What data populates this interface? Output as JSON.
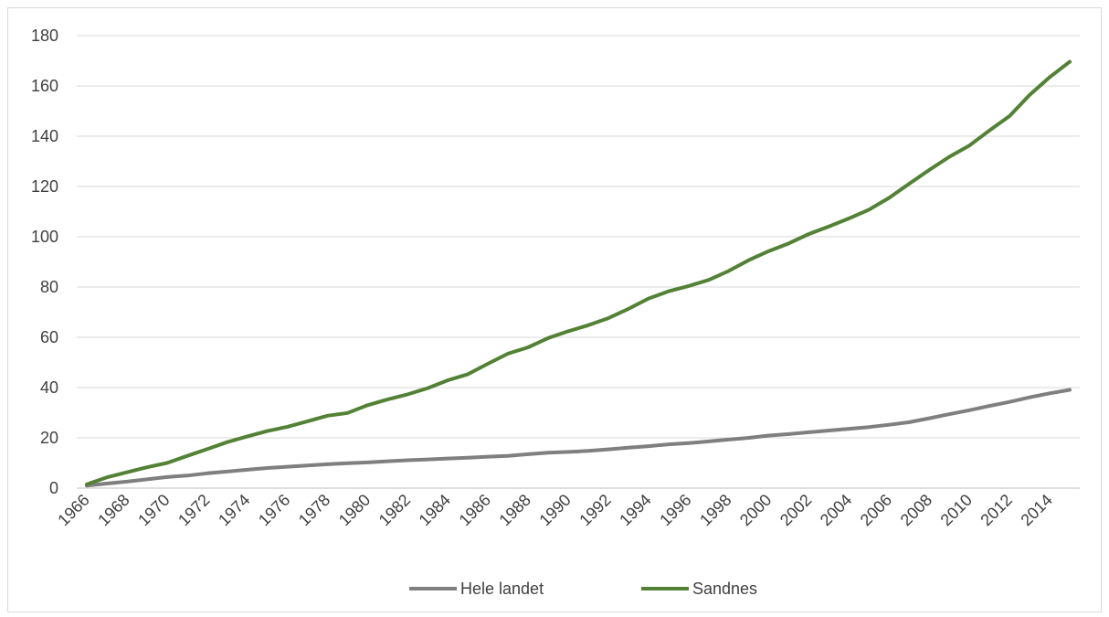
{
  "chart_data": {
    "type": "line",
    "title": "",
    "xlabel": "",
    "ylabel": "",
    "ylim": [
      0,
      180
    ],
    "yticks": [
      0,
      20,
      40,
      60,
      80,
      100,
      120,
      140,
      160,
      180
    ],
    "x": [
      1966,
      1967,
      1968,
      1969,
      1970,
      1971,
      1972,
      1973,
      1974,
      1975,
      1976,
      1977,
      1978,
      1979,
      1980,
      1981,
      1982,
      1983,
      1984,
      1985,
      1986,
      1987,
      1988,
      1989,
      1990,
      1991,
      1992,
      1993,
      1994,
      1995,
      1996,
      1997,
      1998,
      1999,
      2000,
      2001,
      2002,
      2003,
      2004,
      2005,
      2006,
      2007,
      2008,
      2009,
      2010,
      2011,
      2012,
      2013,
      2014,
      2015
    ],
    "xtick_labels": [
      "1966",
      "1968",
      "1970",
      "1972",
      "1974",
      "1976",
      "1978",
      "1980",
      "1982",
      "1984",
      "1986",
      "1988",
      "1990",
      "1992",
      "1994",
      "1996",
      "1998",
      "2000",
      "2002",
      "2004",
      "2006",
      "2008",
      "2010",
      "2012",
      "2014"
    ],
    "grid": true,
    "legend_position": "bottom",
    "series": [
      {
        "name": "Hele landet",
        "color": "#7f7f7f",
        "values": [
          1,
          1.8,
          2.6,
          3.5,
          4.4,
          5,
          5.9,
          6.6,
          7.3,
          8,
          8.5,
          9,
          9.5,
          9.9,
          10.2,
          10.7,
          11.1,
          11.4,
          11.8,
          12.1,
          12.5,
          12.8,
          13.5,
          14.1,
          14.4,
          14.8,
          15.4,
          16.1,
          16.7,
          17.4,
          17.9,
          18.6,
          19.3,
          20,
          20.9,
          21.5,
          22.2,
          22.9,
          23.6,
          24.3,
          25.2,
          26.2,
          27.8,
          29.4,
          31,
          32.7,
          34.3,
          36.1,
          37.7,
          39.1
        ]
      },
      {
        "name": "Sandnes",
        "color": "#538135",
        "values": [
          1.5,
          4.3,
          6.3,
          8.3,
          10,
          12.8,
          15.5,
          18.3,
          20.6,
          22.7,
          24.4,
          26.6,
          28.8,
          29.9,
          33,
          35.3,
          37.3,
          39.8,
          42.9,
          45.3,
          49.5,
          53.5,
          56,
          59.7,
          62.4,
          64.8,
          67.6,
          71.3,
          75.4,
          78.3,
          80.4,
          82.8,
          86.4,
          90.7,
          94.3,
          97.4,
          101.1,
          104.1,
          107.3,
          110.8,
          115.5,
          121.1,
          126.6,
          131.8,
          136.3,
          142.3,
          148,
          156.4,
          163.5,
          169.6
        ]
      }
    ]
  }
}
